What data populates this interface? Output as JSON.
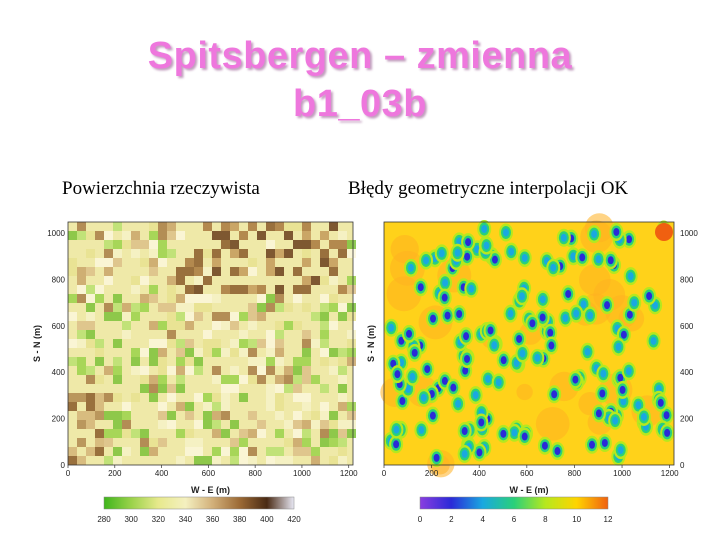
{
  "title": {
    "line1": "Spitsbergen – zmienna",
    "line2": "b1_03b"
  },
  "subtitle_left": "Powierzchnia rzeczywista",
  "subtitle_right": "Błędy geometryczne interpolacji OK",
  "left_map": {
    "xlabel": "W - E (m)",
    "ylabel": "S - N (m)",
    "x_ticks": [
      "0",
      "200",
      "400",
      "600",
      "800",
      "1000",
      "1200"
    ],
    "y_ticks": [
      "0",
      "200",
      "400",
      "600",
      "800",
      "1000"
    ],
    "colorbar_ticks": [
      "280",
      "300",
      "320",
      "340",
      "360",
      "380",
      "400",
      "420"
    ],
    "colorbar_colors": [
      "#3fb51c",
      "#9ad24a",
      "#e7e98c",
      "#f4f0c0",
      "#d2b07a",
      "#9c6a35",
      "#4a2a14",
      "#e8e8f4"
    ]
  },
  "right_map": {
    "xlabel": "W - E (m)",
    "ylabel": "S - N (m)",
    "x_ticks": [
      "0",
      "200",
      "400",
      "600",
      "800",
      "1000",
      "1200"
    ],
    "y_ticks": [
      "0",
      "200",
      "400",
      "600",
      "800",
      "1000"
    ],
    "colorbar_ticks": [
      "0",
      "2",
      "4",
      "6",
      "8",
      "10",
      "12"
    ],
    "colorbar_colors": [
      "#8a3ee0",
      "#2a2ad8",
      "#1aa8e0",
      "#2ad07a",
      "#b6e81e",
      "#ffd400",
      "#f06010"
    ]
  }
}
